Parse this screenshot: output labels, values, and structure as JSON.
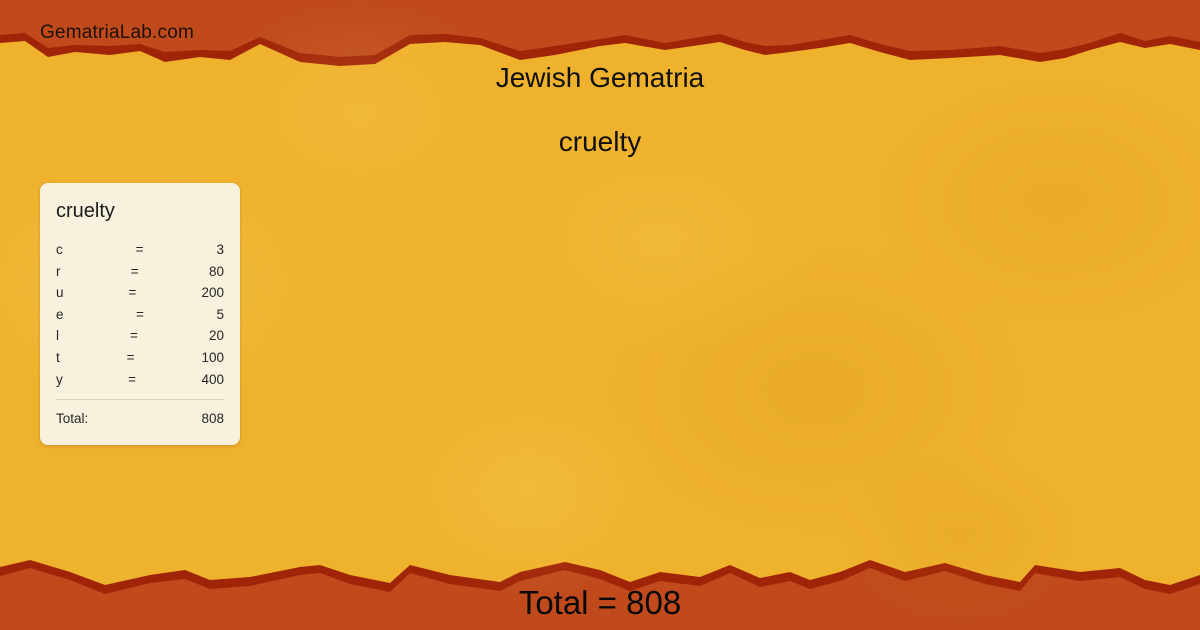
{
  "site": {
    "name": "GematriaLab.com"
  },
  "header": {
    "title": "Jewish Gematria",
    "word": "cruelty"
  },
  "card": {
    "title": "cruelty",
    "equals_sign": "=",
    "rows": [
      {
        "letter": "c",
        "value": 3
      },
      {
        "letter": "r",
        "value": 80
      },
      {
        "letter": "u",
        "value": 200
      },
      {
        "letter": "e",
        "value": 5
      },
      {
        "letter": "l",
        "value": 20
      },
      {
        "letter": "t",
        "value": 100
      },
      {
        "letter": "y",
        "value": 400
      }
    ],
    "total_label": "Total:",
    "total_value": 808
  },
  "footer": {
    "total_text": "Total = 808"
  },
  "colors": {
    "band_orange": "#c04a1c",
    "band_edge_red": "#a02408",
    "background_yellow": "#efb22d",
    "card_background": "#f8f1de",
    "text_dark": "#101010"
  }
}
